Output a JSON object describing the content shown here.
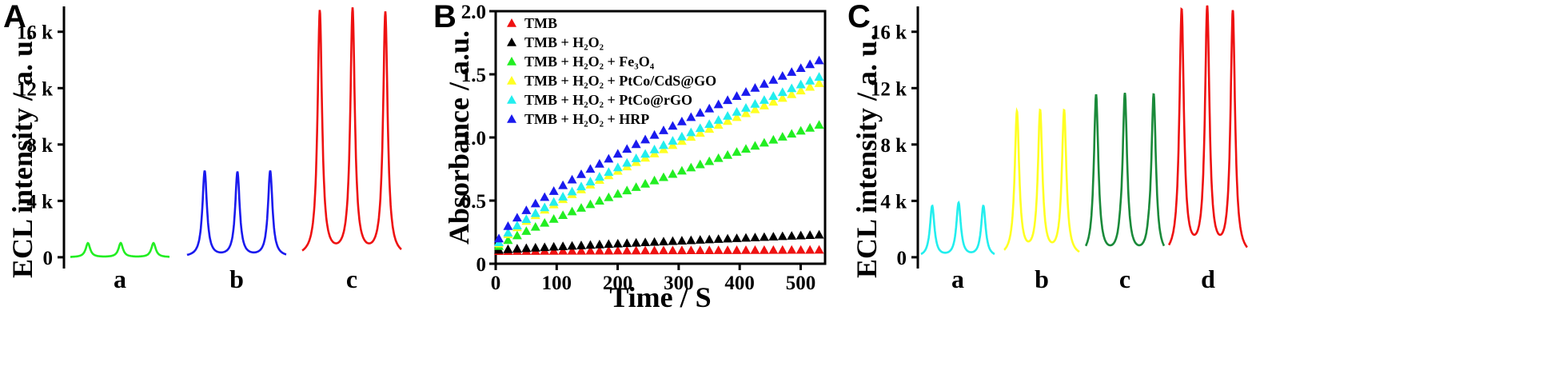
{
  "chart_data": [
    {
      "panel": "A",
      "type": "line",
      "ylabel": "ECL intensity / a. u.",
      "xlabel": "",
      "ylim": [
        -800,
        17800
      ],
      "yticks": [
        0,
        4000,
        8000,
        12000,
        16000
      ],
      "ytick_labels": [
        "0",
        "4 k",
        "8 k",
        "12 k",
        "16 k"
      ],
      "categories": [
        "a",
        "b",
        "c"
      ],
      "series": [
        {
          "name": "a",
          "color": "#22ee22",
          "peaks": [
            1000,
            1000,
            1000
          ]
        },
        {
          "name": "b",
          "color": "#1a1aee",
          "peaks": [
            6100,
            6000,
            6100
          ]
        },
        {
          "name": "c",
          "color": "#ee1111",
          "peaks": [
            17400,
            17500,
            17300
          ]
        }
      ]
    },
    {
      "panel": "B",
      "type": "scatter",
      "xlabel": "Time / S",
      "ylabel": "Absorbance / a.u.",
      "xlim": [
        0,
        540
      ],
      "ylim": [
        0,
        2.0
      ],
      "xticks": [
        0,
        100,
        200,
        300,
        400,
        500
      ],
      "yticks": [
        0,
        0.5,
        1.0,
        1.5,
        2.0
      ],
      "ytick_labels": [
        "0",
        "0.5",
        "1.0",
        "1.5",
        "2.0"
      ],
      "legend_location": "top-left",
      "x_start": 0,
      "x_step": 15,
      "n_points": 36,
      "series": [
        {
          "name": "TMB",
          "color": "#ee1111",
          "start": 0.1,
          "end": 0.11,
          "curve": 1.0
        },
        {
          "name": "TMB + H₂O₂",
          "color": "#000000",
          "start": 0.11,
          "end": 0.23,
          "curve": 0.9
        },
        {
          "name": "TMB + H₂O₂ + Fe₃O₄",
          "color": "#22ee22",
          "start": 0.14,
          "end": 1.1,
          "curve": 0.85
        },
        {
          "name": "TMB + H₂O₂ + PtCo/CdS@GO",
          "color": "#ffff22",
          "start": 0.16,
          "end": 1.43,
          "curve": 0.8
        },
        {
          "name": "TMB + H₂O₂ + PtCo@rGO",
          "color": "#22eeee",
          "start": 0.17,
          "end": 1.48,
          "curve": 0.8
        },
        {
          "name": "TMB + H₂O₂ + HRP",
          "color": "#1a1aee",
          "start": 0.2,
          "end": 1.61,
          "curve": 0.75
        }
      ]
    },
    {
      "panel": "C",
      "type": "line",
      "ylabel": "ECL intensity / a. u.",
      "xlabel": "",
      "ylim": [
        -800,
        17800
      ],
      "yticks": [
        0,
        4000,
        8000,
        12000,
        16000
      ],
      "ytick_labels": [
        "0",
        "4 k",
        "8 k",
        "12 k",
        "16 k"
      ],
      "categories": [
        "a",
        "b",
        "c",
        "d"
      ],
      "series": [
        {
          "name": "a",
          "color": "#22eeee",
          "peaks": [
            3600,
            3800,
            3600
          ]
        },
        {
          "name": "b",
          "color": "#ffff22",
          "peaks": [
            10200,
            10200,
            10300
          ]
        },
        {
          "name": "c",
          "color": "#1a8a3a",
          "peaks": [
            11400,
            11400,
            11400
          ]
        },
        {
          "name": "d",
          "color": "#ee1111",
          "peaks": [
            17400,
            17500,
            17300
          ]
        }
      ]
    }
  ]
}
